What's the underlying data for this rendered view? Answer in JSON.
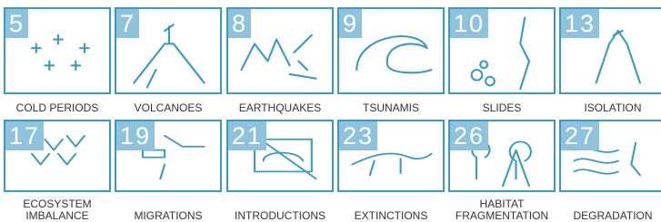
{
  "cards": [
    {
      "number": 5,
      "label": "COLD PERIODS"
    },
    {
      "number": 7,
      "label": "VOLCANOES"
    },
    {
      "number": 8,
      "label": "EARTHQUAKES"
    },
    {
      "number": 9,
      "label": "TSUNAMIS"
    },
    {
      "number": 10,
      "label": "SLIDES"
    },
    {
      "number": 13,
      "label": "ISOLATION"
    },
    {
      "number": 17,
      "label": "ECOSYSTEM IMBALANCE"
    },
    {
      "number": 19,
      "label": "MIGRATIONS"
    },
    {
      "number": 21,
      "label": "INTRODUCTIONS"
    },
    {
      "number": 23,
      "label": "EXTINCTIONS"
    },
    {
      "number": 26,
      "label": "HABITAT FRAGMENTATION"
    },
    {
      "number": 27,
      "label": "DEGRADATION"
    }
  ]
}
